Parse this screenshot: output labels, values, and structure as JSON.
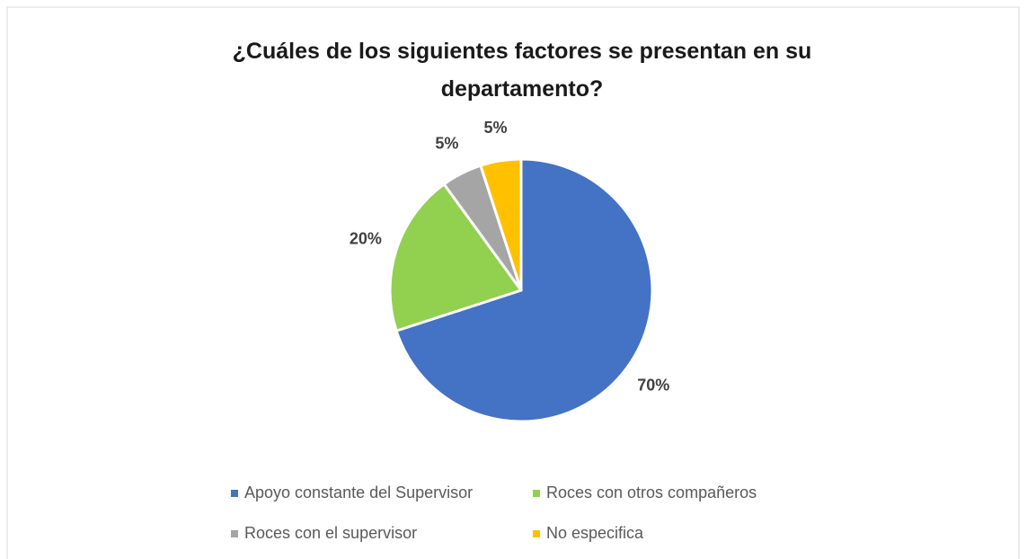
{
  "chart_data": {
    "type": "pie",
    "title": "¿Cuáles de los siguientes factores se presentan en su departamento?",
    "categories": [
      "Apoyo constante del Supervisor",
      "Roces con otros compañeros",
      "Roces con el supervisor",
      "No especifica"
    ],
    "values": [
      70,
      20,
      5,
      5
    ],
    "value_labels": [
      "70%",
      "20%",
      "5%",
      "5%"
    ],
    "colors": [
      "#4472c4",
      "#92d050",
      "#a5a5a5",
      "#ffc000"
    ],
    "legend": "bottom"
  }
}
